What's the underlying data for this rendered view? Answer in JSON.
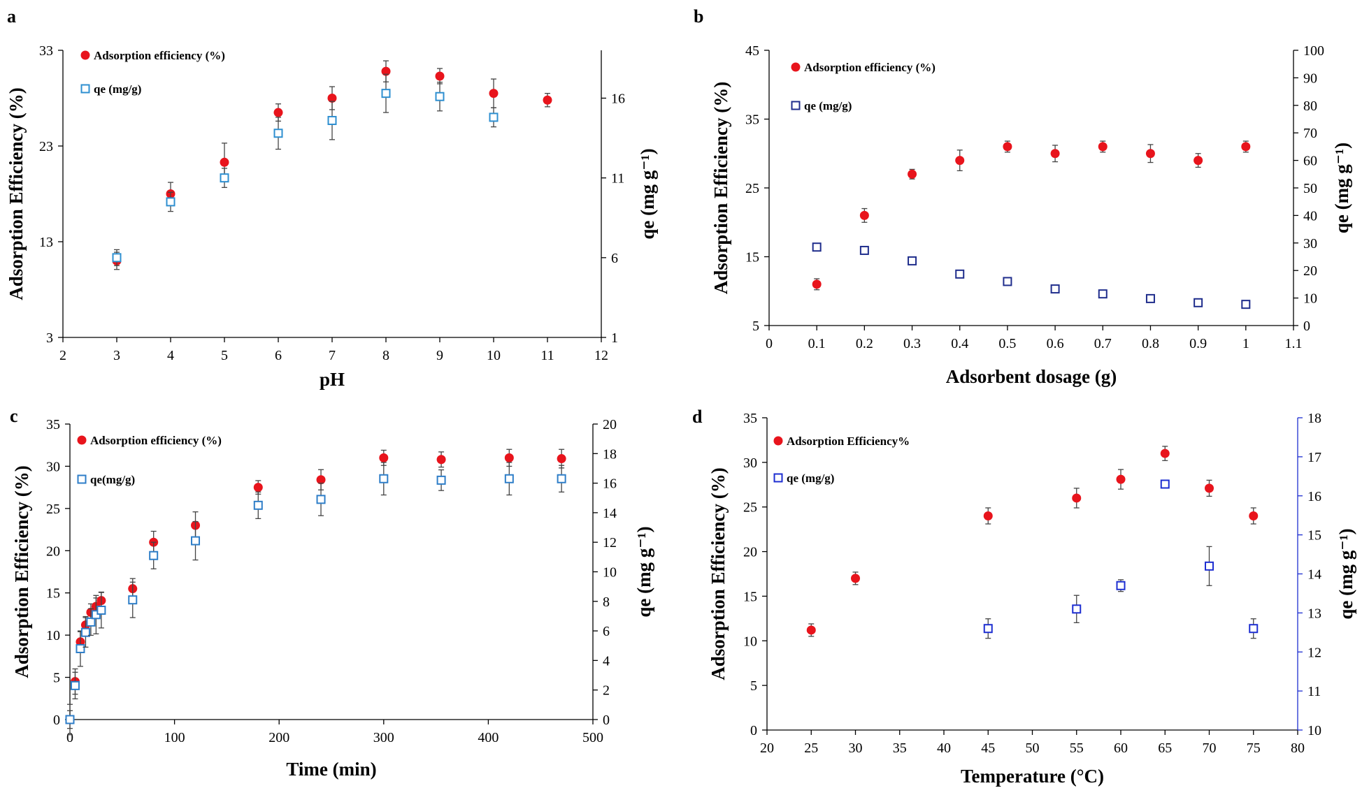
{
  "figure": {
    "letters": [
      "a",
      "b",
      "c",
      "d"
    ]
  },
  "chart_data": [
    {
      "panel": "a",
      "type": "scatter",
      "xlabel": "pH",
      "ylabel": "Adsorption Efficiency (%)",
      "y2label": "qe (mg g⁻¹)",
      "xlim": [
        2,
        12
      ],
      "xticks": [
        "2",
        "3",
        "4",
        "5",
        "6",
        "7",
        "8",
        "9",
        "10",
        "11",
        "12"
      ],
      "xtick_values": [
        2,
        3,
        4,
        5,
        6,
        7,
        8,
        9,
        10,
        11,
        12
      ],
      "ylim": [
        3,
        33
      ],
      "yticks": [
        "3",
        "13",
        "23",
        "33"
      ],
      "ytick_values": [
        3,
        13,
        23,
        33
      ],
      "y2lim": [
        1,
        19
      ],
      "y2ticks": [
        "1",
        "6",
        "11",
        "16"
      ],
      "y2tick_values": [
        1,
        6,
        11,
        16
      ],
      "legend_position": "top-left",
      "series": [
        {
          "name": "Adsorption efficiency (%)",
          "axis": "left",
          "marker": "circle",
          "color": "#e8141c",
          "x": [
            3,
            4,
            5,
            6,
            7,
            8,
            9,
            10,
            11
          ],
          "y": [
            11,
            18,
            21.3,
            26.5,
            28,
            30.8,
            30.3,
            28.5,
            27.8
          ],
          "err": [
            0.9,
            1.2,
            2,
            0.9,
            1.2,
            1.1,
            0.8,
            1.5,
            0.7
          ]
        },
        {
          "name": "qe (mg/g)",
          "axis": "right",
          "marker": "square",
          "color": "#2e8fd0",
          "x": [
            3,
            4,
            5,
            6,
            7,
            8,
            9,
            10
          ],
          "y": [
            6,
            9.5,
            11,
            13.8,
            14.6,
            16.3,
            16.1,
            14.8
          ],
          "err": [
            0.5,
            0.6,
            0.6,
            1,
            1.2,
            1.2,
            0.9,
            0.6
          ]
        }
      ]
    },
    {
      "panel": "b",
      "type": "scatter",
      "xlabel": "Adsorbent dosage (g)",
      "ylabel": "Adsorption Efficiency (%)",
      "y2label": "qe (mg g⁻¹)",
      "xlim": [
        0,
        1.1
      ],
      "xticks": [
        "0",
        "0.1",
        "0.2",
        "0.3",
        "0.4",
        "0.5",
        "0.6",
        "0.7",
        "0.8",
        "0.9",
        "1",
        "1.1"
      ],
      "xtick_values": [
        0,
        0.1,
        0.2,
        0.3,
        0.4,
        0.5,
        0.6,
        0.7,
        0.8,
        0.9,
        1,
        1.1
      ],
      "ylim": [
        5,
        45
      ],
      "yticks": [
        "5",
        "15",
        "25",
        "35",
        "45"
      ],
      "ytick_values": [
        5,
        15,
        25,
        35,
        45
      ],
      "y2lim": [
        0,
        100
      ],
      "y2ticks": [
        "0",
        "10",
        "20",
        "30",
        "40",
        "50",
        "60",
        "70",
        "80",
        "90",
        "100"
      ],
      "y2tick_values": [
        0,
        10,
        20,
        30,
        40,
        50,
        60,
        70,
        80,
        90,
        100
      ],
      "legend_position": "top-left",
      "series": [
        {
          "name": "Adsorption efficiency (%)",
          "axis": "left",
          "marker": "circle",
          "color": "#e8141c",
          "x": [
            0.1,
            0.2,
            0.3,
            0.4,
            0.5,
            0.6,
            0.7,
            0.8,
            0.9,
            1.0
          ],
          "y": [
            11,
            21,
            27,
            29,
            31,
            30,
            31,
            30,
            29,
            31
          ],
          "err": [
            0.8,
            1,
            0.7,
            1.5,
            0.8,
            1.2,
            0.8,
            1.3,
            1,
            0.8
          ]
        },
        {
          "name": "qe (mg/g)",
          "axis": "right",
          "marker": "square",
          "color": "#1f2d8c",
          "x": [
            0.1,
            0.2,
            0.3,
            0.4,
            0.5,
            0.6,
            0.7,
            0.8,
            0.9,
            1.0
          ],
          "y": [
            28.5,
            27.3,
            23.5,
            18.7,
            16,
            13.3,
            11.5,
            9.8,
            8.3,
            7.7
          ],
          "err": [
            0,
            0,
            0,
            0,
            0,
            0,
            0,
            0,
            0,
            0
          ]
        }
      ]
    },
    {
      "panel": "c",
      "type": "scatter",
      "xlabel": "Time (min)",
      "ylabel": "Adsorption Efficiency (%)",
      "y2label": "qe (mg g⁻¹)",
      "xlim": [
        0,
        500
      ],
      "xticks": [
        "0",
        "100",
        "200",
        "300",
        "400",
        "500"
      ],
      "xtick_values": [
        0,
        100,
        200,
        300,
        400,
        500
      ],
      "ylim": [
        0,
        35
      ],
      "yticks": [
        "0",
        "5",
        "10",
        "15",
        "20",
        "25",
        "30",
        "35"
      ],
      "ytick_values": [
        0,
        5,
        10,
        15,
        20,
        25,
        30,
        35
      ],
      "y2lim": [
        0,
        20
      ],
      "y2ticks": [
        "0",
        "2",
        "4",
        "6",
        "8",
        "10",
        "12",
        "14",
        "16",
        "18",
        "20"
      ],
      "y2tick_values": [
        0,
        2,
        4,
        6,
        8,
        10,
        12,
        14,
        16,
        18,
        20
      ],
      "legend_position": "top-left",
      "series": [
        {
          "name": "Adsorption efficiency (%)",
          "axis": "left",
          "marker": "circle",
          "color": "#e8141c",
          "x": [
            0,
            5,
            10,
            15,
            20,
            25,
            30,
            60,
            80,
            120,
            180,
            240,
            300,
            355,
            420,
            470
          ],
          "y": [
            0,
            4.5,
            9.2,
            11.2,
            12.7,
            13.4,
            14.1,
            15.5,
            21,
            23,
            27.5,
            28.4,
            31,
            30.8,
            31,
            30.9
          ],
          "err": [
            1.8,
            1.5,
            1.2,
            1,
            1,
            1,
            1,
            1.2,
            1.3,
            1.6,
            0.8,
            1.2,
            0.9,
            0.9,
            1,
            1.1
          ]
        },
        {
          "name": "qe(mg/g)",
          "axis": "right",
          "marker": "square",
          "color": "#2e7ec8",
          "x": [
            0,
            5,
            10,
            15,
            20,
            25,
            30,
            60,
            80,
            120,
            180,
            240,
            300,
            355,
            420,
            470
          ],
          "y": [
            0,
            2.3,
            4.8,
            5.9,
            6.6,
            7.1,
            7.4,
            8.1,
            11.1,
            12.1,
            14.5,
            14.9,
            16.3,
            16.2,
            16.3,
            16.3
          ],
          "err": [
            0.6,
            0.9,
            1.2,
            1,
            0.9,
            1.3,
            1.2,
            1.2,
            0.9,
            1.3,
            0.9,
            1.1,
            1.1,
            0.7,
            1.1,
            0.9
          ]
        }
      ]
    },
    {
      "panel": "d",
      "type": "scatter",
      "xlabel": "Temperature (°C)",
      "ylabel": "Adsorption Efficiency (%)",
      "y2label": "qe (mg g⁻¹)",
      "xlim": [
        20,
        80
      ],
      "xticks": [
        "20",
        "25",
        "30",
        "35",
        "40",
        "45",
        "50",
        "55",
        "60",
        "65",
        "70",
        "75",
        "80"
      ],
      "xtick_values": [
        20,
        25,
        30,
        35,
        40,
        45,
        50,
        55,
        60,
        65,
        70,
        75,
        80
      ],
      "ylim": [
        0,
        35
      ],
      "yticks": [
        "0",
        "5",
        "10",
        "15",
        "20",
        "25",
        "30",
        "35"
      ],
      "ytick_values": [
        0,
        5,
        10,
        15,
        20,
        25,
        30,
        35
      ],
      "y2lim": [
        10,
        18
      ],
      "y2ticks": [
        "10",
        "11",
        "12",
        "13",
        "14",
        "15",
        "16",
        "17",
        "18"
      ],
      "y2tick_values": [
        10,
        11,
        12,
        13,
        14,
        15,
        16,
        17,
        18
      ],
      "legend_position": "top-left",
      "right_axis_color": "#1d2ed1",
      "series": [
        {
          "name": "Adsorption Efficiency%",
          "axis": "left",
          "marker": "circle",
          "color": "#e8141c",
          "x": [
            25,
            30,
            45,
            55,
            60,
            65,
            70,
            75
          ],
          "y": [
            11.2,
            17,
            24,
            26,
            28.1,
            31,
            27.1,
            24
          ],
          "err": [
            0.7,
            0.7,
            0.9,
            1.1,
            1.1,
            0.8,
            0.9,
            0.9
          ]
        },
        {
          "name": "qe (mg/g)",
          "axis": "right",
          "marker": "square",
          "color": "#1d2ed1",
          "x": [
            45,
            55,
            60,
            65,
            70,
            75
          ],
          "y": [
            12.6,
            13.1,
            13.7,
            16.3,
            14.2,
            12.6
          ],
          "err": [
            0.25,
            0.35,
            0.15,
            0,
            0.5,
            0.25
          ]
        }
      ]
    }
  ]
}
